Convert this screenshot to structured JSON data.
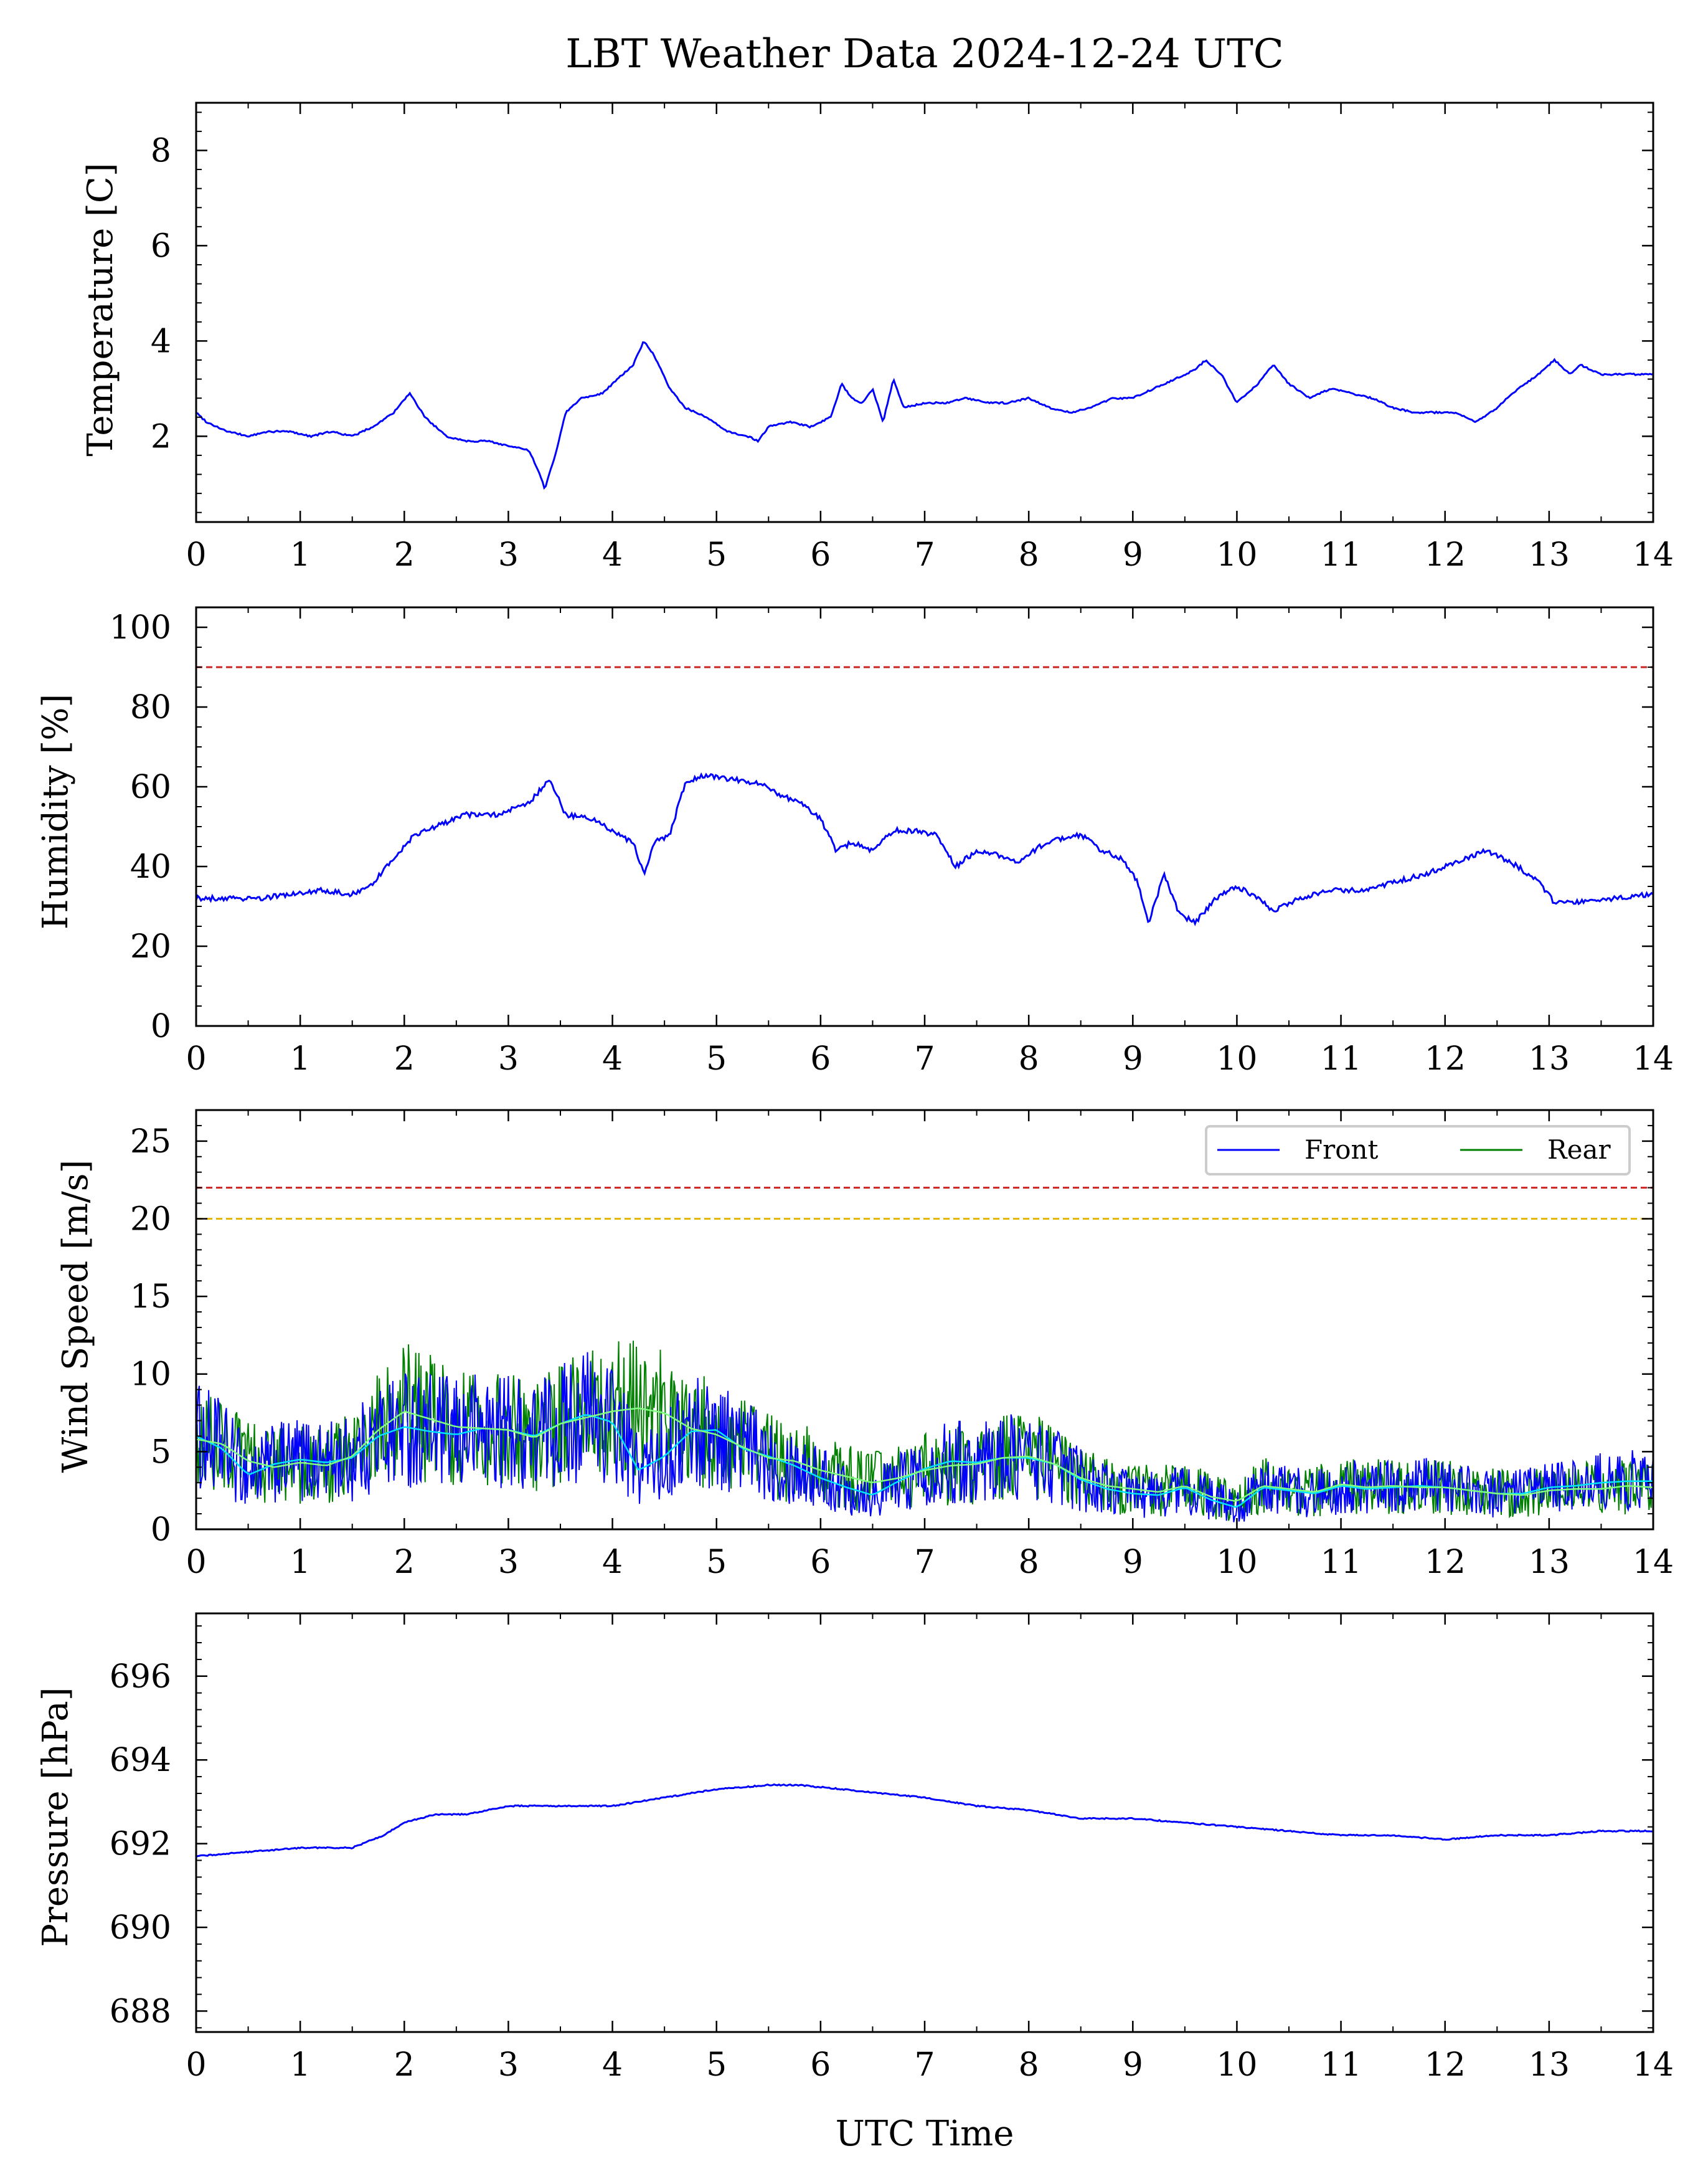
{
  "title": "LBT Weather Data 2024-12-24 UTC",
  "xlabel": "UTC Time",
  "colors": {
    "front": "#0000ff",
    "rear": "#008000",
    "front_smooth": "#00e5ff",
    "rear_smooth": "#80ff80",
    "alarm_red": "#cc2222",
    "warn_orange": "#e6b800"
  },
  "chart_data": [
    {
      "type": "line",
      "ylabel": "Temperature [C]",
      "xlim": [
        0,
        14
      ],
      "ylim": [
        0.2,
        9
      ],
      "xticks": [
        0,
        1,
        2,
        3,
        4,
        5,
        6,
        7,
        8,
        9,
        10,
        11,
        12,
        13,
        14
      ],
      "yticks": [
        2,
        4,
        6,
        8
      ],
      "x": [
        0,
        0.1,
        0.3,
        0.5,
        0.7,
        0.9,
        1.1,
        1.3,
        1.5,
        1.7,
        1.9,
        2.05,
        2.2,
        2.4,
        2.6,
        2.8,
        3.0,
        3.2,
        3.3,
        3.35,
        3.45,
        3.55,
        3.7,
        3.9,
        4.05,
        4.2,
        4.3,
        4.4,
        4.55,
        4.7,
        4.9,
        5.1,
        5.3,
        5.4,
        5.5,
        5.7,
        5.9,
        6.1,
        6.2,
        6.3,
        6.4,
        6.5,
        6.6,
        6.7,
        6.8,
        7.0,
        7.2,
        7.4,
        7.6,
        7.8,
        8.0,
        8.2,
        8.4,
        8.6,
        8.8,
        9.0,
        9.2,
        9.4,
        9.6,
        9.7,
        9.85,
        10.0,
        10.2,
        10.35,
        10.5,
        10.7,
        10.9,
        11.1,
        11.3,
        11.5,
        11.7,
        11.9,
        12.1,
        12.3,
        12.5,
        12.7,
        12.9,
        13.05,
        13.2,
        13.3,
        13.5,
        13.7,
        14.0
      ],
      "series": [
        {
          "values": [
            2.5,
            2.3,
            2.1,
            2.0,
            2.1,
            2.1,
            2.0,
            2.1,
            2.0,
            2.2,
            2.5,
            2.9,
            2.4,
            2.0,
            1.9,
            1.9,
            1.8,
            1.7,
            1.2,
            0.9,
            1.6,
            2.5,
            2.8,
            2.9,
            3.2,
            3.5,
            4.0,
            3.7,
            3.0,
            2.6,
            2.4,
            2.1,
            2.0,
            1.9,
            2.2,
            2.3,
            2.2,
            2.4,
            3.1,
            2.8,
            2.7,
            3.0,
            2.3,
            3.2,
            2.6,
            2.7,
            2.7,
            2.8,
            2.7,
            2.7,
            2.8,
            2.6,
            2.5,
            2.6,
            2.8,
            2.8,
            3.0,
            3.2,
            3.4,
            3.6,
            3.3,
            2.7,
            3.1,
            3.5,
            3.1,
            2.8,
            3.0,
            2.9,
            2.8,
            2.6,
            2.5,
            2.5,
            2.5,
            2.3,
            2.6,
            3.0,
            3.3,
            3.6,
            3.3,
            3.5,
            3.3,
            3.3,
            3.3
          ]
        }
      ]
    },
    {
      "type": "line",
      "ylabel": "Humidity [%]",
      "xlim": [
        0,
        14
      ],
      "ylim": [
        0,
        105
      ],
      "xticks": [
        0,
        1,
        2,
        3,
        4,
        5,
        6,
        7,
        8,
        9,
        10,
        11,
        12,
        13,
        14
      ],
      "yticks": [
        0,
        20,
        40,
        60,
        80,
        100
      ],
      "threshold_lines": [
        90
      ],
      "x": [
        0,
        0.3,
        0.6,
        0.9,
        1.2,
        1.5,
        1.7,
        1.9,
        2.1,
        2.3,
        2.6,
        2.9,
        3.2,
        3.4,
        3.55,
        3.8,
        4.0,
        4.2,
        4.3,
        4.4,
        4.55,
        4.7,
        4.9,
        5.1,
        5.4,
        5.6,
        5.8,
        6.0,
        6.15,
        6.3,
        6.5,
        6.7,
        6.9,
        7.1,
        7.3,
        7.5,
        7.7,
        7.9,
        8.1,
        8.3,
        8.5,
        8.7,
        8.9,
        9.05,
        9.15,
        9.3,
        9.45,
        9.6,
        9.8,
        10.0,
        10.2,
        10.35,
        10.6,
        10.9,
        11.2,
        11.5,
        11.8,
        12.1,
        12.4,
        12.7,
        12.9,
        13.05,
        13.3,
        13.6,
        14.0
      ],
      "series": [
        {
          "values": [
            32,
            32,
            32,
            33,
            34,
            33,
            36,
            42,
            48,
            50,
            53,
            53,
            56,
            62,
            53,
            52,
            49,
            46,
            38,
            46,
            48,
            61,
            63,
            62,
            61,
            58,
            56,
            52,
            44,
            46,
            44,
            49,
            49,
            48,
            40,
            44,
            43,
            41,
            45,
            47,
            48,
            44,
            42,
            36,
            26,
            38,
            28,
            26,
            32,
            35,
            32,
            29,
            32,
            34,
            34,
            36,
            38,
            41,
            44,
            40,
            36,
            31,
            31,
            32,
            33
          ]
        }
      ]
    },
    {
      "type": "line",
      "ylabel": "Wind Speed [m/s]",
      "xlim": [
        0,
        14
      ],
      "ylim": [
        0,
        27
      ],
      "xticks": [
        0,
        1,
        2,
        3,
        4,
        5,
        6,
        7,
        8,
        9,
        10,
        11,
        12,
        13,
        14
      ],
      "yticks": [
        0,
        5,
        10,
        15,
        20,
        25
      ],
      "threshold_lines": [
        22,
        20
      ],
      "legend": "top-right",
      "x": [
        0,
        0.25,
        0.5,
        0.75,
        1.0,
        1.25,
        1.5,
        1.75,
        2.0,
        2.25,
        2.5,
        2.75,
        3.0,
        3.25,
        3.5,
        3.75,
        4.0,
        4.25,
        4.5,
        4.75,
        5.0,
        5.25,
        5.5,
        5.75,
        6.0,
        6.25,
        6.5,
        6.75,
        7.0,
        7.25,
        7.5,
        7.75,
        8.0,
        8.25,
        8.5,
        8.75,
        9.0,
        9.25,
        9.5,
        9.75,
        10.0,
        10.25,
        10.5,
        10.75,
        11.0,
        11.25,
        11.5,
        11.75,
        12.0,
        12.25,
        12.5,
        12.75,
        13.0,
        13.25,
        13.5,
        13.75,
        14.0
      ],
      "series": [
        {
          "name": "Front",
          "values": [
            6.0,
            5.2,
            3.5,
            4.2,
            4.5,
            4.3,
            4.6,
            6.0,
            6.6,
            6.3,
            6.1,
            6.5,
            6.4,
            6.0,
            6.8,
            7.4,
            6.9,
            3.8,
            4.7,
            6.3,
            6.4,
            5.2,
            4.7,
            4.1,
            3.3,
            2.7,
            2.2,
            3.1,
            3.9,
            4.4,
            4.3,
            4.6,
            4.6,
            4.2,
            3.2,
            2.6,
            2.3,
            2.2,
            2.7,
            1.9,
            1.4,
            2.7,
            2.5,
            2.3,
            2.8,
            2.6,
            2.7,
            2.8,
            2.7,
            2.5,
            2.3,
            2.3,
            2.7,
            2.8,
            3.0,
            3.1,
            3.1
          ]
        },
        {
          "name": "Rear",
          "values": [
            5.8,
            5.5,
            4.4,
            4.0,
            4.3,
            4.1,
            4.7,
            6.4,
            7.6,
            7.1,
            6.6,
            6.5,
            6.4,
            5.9,
            6.8,
            7.2,
            7.6,
            7.8,
            7.5,
            6.5,
            6.1,
            5.3,
            4.6,
            4.4,
            3.8,
            3.4,
            3.0,
            3.3,
            3.8,
            4.1,
            4.2,
            4.6,
            4.7,
            4.2,
            3.3,
            2.8,
            2.6,
            2.4,
            2.8,
            2.1,
            1.8,
            2.8,
            2.6,
            2.4,
            2.9,
            2.7,
            2.8,
            2.7,
            2.7,
            2.5,
            2.3,
            2.2,
            2.5,
            2.6,
            2.6,
            2.8,
            2.7
          ]
        }
      ]
    },
    {
      "type": "line",
      "ylabel": "Pressure [hPa]",
      "xlim": [
        0,
        14
      ],
      "ylim": [
        687.5,
        697.5
      ],
      "xticks": [
        0,
        1,
        2,
        3,
        4,
        5,
        6,
        7,
        8,
        9,
        10,
        11,
        12,
        13,
        14
      ],
      "yticks": [
        688,
        690,
        692,
        694,
        696
      ],
      "x": [
        0,
        0.5,
        1.0,
        1.5,
        1.8,
        2.0,
        2.3,
        2.6,
        3.0,
        3.5,
        4.0,
        4.5,
        5.0,
        5.5,
        5.8,
        6.2,
        6.6,
        7.0,
        7.5,
        8.0,
        8.5,
        9.0,
        9.5,
        10.0,
        10.5,
        11.0,
        11.5,
        12.0,
        12.5,
        13.0,
        13.5,
        14.0
      ],
      "series": [
        {
          "values": [
            691.7,
            691.8,
            691.9,
            691.9,
            692.2,
            692.5,
            692.7,
            692.7,
            692.9,
            692.9,
            692.9,
            693.1,
            693.3,
            693.4,
            693.4,
            693.3,
            693.2,
            693.1,
            692.9,
            692.8,
            692.6,
            692.6,
            692.5,
            692.4,
            692.3,
            692.2,
            692.2,
            692.1,
            692.2,
            692.2,
            692.3,
            692.3
          ]
        }
      ]
    }
  ]
}
